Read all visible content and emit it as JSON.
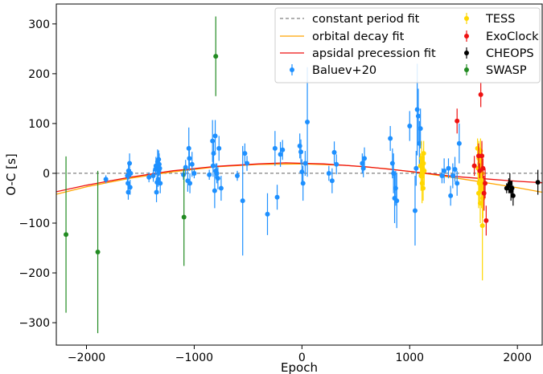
{
  "chart_data": {
    "type": "scatter",
    "xlabel": "Epoch",
    "ylabel": "O-C [s]",
    "xlim": [
      -2280,
      2230
    ],
    "ylim": [
      -345,
      340
    ],
    "xticks": [
      -2000,
      -1000,
      0,
      1000,
      2000
    ],
    "yticks": [
      -300,
      -200,
      -100,
      0,
      100,
      200,
      300
    ],
    "xtick_labels": [
      "−2000",
      "−1000",
      "0",
      "1000",
      "2000"
    ],
    "ytick_labels": [
      "−300",
      "−200",
      "−100",
      "0",
      "100",
      "200",
      "300"
    ],
    "grid": false,
    "legend_position": "top-right",
    "fits": [
      {
        "name": "constant period fit",
        "color": "#808080",
        "style": "dashed",
        "points": [
          [
            -2280,
            0
          ],
          [
            2230,
            0
          ]
        ]
      },
      {
        "name": "orbital decay fit",
        "color": "#ffa500",
        "style": "solid",
        "points": [
          [
            -2280,
            -42
          ],
          [
            -2000,
            -27
          ],
          [
            -1600,
            -10
          ],
          [
            -1200,
            3
          ],
          [
            -800,
            13
          ],
          [
            -400,
            18
          ],
          [
            0,
            19
          ],
          [
            400,
            16
          ],
          [
            800,
            9
          ],
          [
            1200,
            -2
          ],
          [
            1600,
            -15
          ],
          [
            2000,
            -29
          ],
          [
            2230,
            -38
          ]
        ]
      },
      {
        "name": "apsidal precession fit",
        "color": "#ee1111",
        "style": "solid",
        "points": [
          [
            -2280,
            -37
          ],
          [
            -2000,
            -24
          ],
          [
            -1600,
            -8
          ],
          [
            -1200,
            5
          ],
          [
            -800,
            14
          ],
          [
            -400,
            19
          ],
          [
            -150,
            21
          ],
          [
            200,
            19
          ],
          [
            600,
            13
          ],
          [
            1000,
            4
          ],
          [
            1400,
            -6
          ],
          [
            1700,
            -11
          ],
          [
            2000,
            -16
          ],
          [
            2230,
            -19
          ]
        ]
      }
    ],
    "series": [
      {
        "name": "Baluev+20",
        "color": "#1e90ff",
        "points": [
          [
            -1820,
            -12,
            8
          ],
          [
            -1620,
            -5,
            12
          ],
          [
            -1615,
            -20,
            18
          ],
          [
            -1612,
            -38,
            15
          ],
          [
            -1610,
            5,
            15
          ],
          [
            -1605,
            -2,
            10
          ],
          [
            -1600,
            20,
            20
          ],
          [
            -1595,
            -28,
            15
          ],
          [
            -1590,
            0,
            8
          ],
          [
            -1420,
            -8,
            10
          ],
          [
            -1380,
            -5,
            12
          ],
          [
            -1360,
            8,
            10
          ],
          [
            -1355,
            15,
            18
          ],
          [
            -1350,
            -38,
            20
          ],
          [
            -1345,
            -18,
            20
          ],
          [
            -1340,
            23,
            25
          ],
          [
            -1335,
            -12,
            15
          ],
          [
            -1330,
            28,
            18
          ],
          [
            -1328,
            5,
            10
          ],
          [
            -1325,
            18,
            22
          ],
          [
            -1320,
            10,
            12
          ],
          [
            -1315,
            -20,
            20
          ],
          [
            -1100,
            -3,
            10
          ],
          [
            -1080,
            12,
            15
          ],
          [
            -1060,
            -15,
            22
          ],
          [
            -1050,
            50,
            42
          ],
          [
            -1045,
            30,
            25
          ],
          [
            -1040,
            -20,
            20
          ],
          [
            -1020,
            18,
            25
          ],
          [
            -1000,
            0,
            10
          ],
          [
            -860,
            -3,
            10
          ],
          [
            -830,
            65,
            42
          ],
          [
            -825,
            15,
            22
          ],
          [
            -820,
            40,
            25
          ],
          [
            -810,
            -35,
            35
          ],
          [
            -805,
            75,
            32
          ],
          [
            -800,
            5,
            15
          ],
          [
            -790,
            0,
            20
          ],
          [
            -780,
            -10,
            22
          ],
          [
            -770,
            50,
            25
          ],
          [
            -750,
            -30,
            25
          ],
          [
            -600,
            -5,
            10
          ],
          [
            -550,
            -55,
            110
          ],
          [
            -530,
            40,
            20
          ],
          [
            -510,
            20,
            15
          ],
          [
            -320,
            -82,
            42
          ],
          [
            -250,
            50,
            35
          ],
          [
            -230,
            -48,
            25
          ],
          [
            -200,
            38,
            25
          ],
          [
            -180,
            47,
            20
          ],
          [
            -20,
            55,
            25
          ],
          [
            -10,
            43,
            25
          ],
          [
            0,
            3,
            25
          ],
          [
            10,
            -20,
            35
          ],
          [
            30,
            20,
            25
          ],
          [
            50,
            103,
            110
          ],
          [
            250,
            0,
            15
          ],
          [
            280,
            -15,
            25
          ],
          [
            300,
            42,
            22
          ],
          [
            320,
            18,
            20
          ],
          [
            560,
            20,
            20
          ],
          [
            570,
            10,
            18
          ],
          [
            580,
            30,
            22
          ],
          [
            820,
            70,
            25
          ],
          [
            840,
            20,
            30
          ],
          [
            850,
            0,
            40
          ],
          [
            860,
            -50,
            50
          ],
          [
            870,
            -30,
            35
          ],
          [
            880,
            -55,
            55
          ],
          [
            1000,
            95,
            30
          ],
          [
            1050,
            -75,
            70
          ],
          [
            1060,
            10,
            35
          ],
          [
            1070,
            128,
            92
          ],
          [
            1080,
            115,
            55
          ],
          [
            1090,
            60,
            45
          ],
          [
            1100,
            90,
            40
          ],
          [
            1300,
            -5,
            15
          ],
          [
            1320,
            5,
            25
          ],
          [
            1360,
            10,
            20
          ],
          [
            1380,
            -45,
            20
          ],
          [
            1400,
            -5,
            25
          ],
          [
            1420,
            8,
            25
          ],
          [
            1440,
            -20,
            25
          ],
          [
            1460,
            60,
            40
          ]
        ]
      },
      {
        "name": "TESS",
        "color": "#ffd700",
        "points": [
          [
            1100,
            15,
            25
          ],
          [
            1105,
            -5,
            30
          ],
          [
            1110,
            30,
            35
          ],
          [
            1115,
            -20,
            40
          ],
          [
            1118,
            0,
            35
          ],
          [
            1120,
            10,
            30
          ],
          [
            1125,
            -30,
            25
          ],
          [
            1128,
            20,
            30
          ],
          [
            1130,
            40,
            25
          ],
          [
            1135,
            5,
            30
          ],
          [
            1630,
            50,
            20
          ],
          [
            1635,
            10,
            30
          ],
          [
            1640,
            -40,
            30
          ],
          [
            1642,
            30,
            35
          ],
          [
            1645,
            -20,
            40
          ],
          [
            1648,
            0,
            35
          ],
          [
            1650,
            20,
            30
          ],
          [
            1655,
            -60,
            40
          ],
          [
            1658,
            45,
            25
          ],
          [
            1660,
            -10,
            30
          ],
          [
            1665,
            10,
            35
          ],
          [
            1668,
            -30,
            40
          ],
          [
            1670,
            35,
            25
          ],
          [
            1672,
            0,
            30
          ],
          [
            1675,
            -105,
            110
          ],
          [
            1680,
            -50,
            40
          ]
        ]
      },
      {
        "name": "ExoClock",
        "color": "#ee1111",
        "points": [
          [
            1440,
            105,
            25
          ],
          [
            1600,
            15,
            20
          ],
          [
            1640,
            35,
            25
          ],
          [
            1650,
            5,
            15
          ],
          [
            1660,
            158,
            25
          ],
          [
            1670,
            35,
            30
          ],
          [
            1680,
            10,
            20
          ],
          [
            1690,
            -40,
            35
          ],
          [
            1700,
            -20,
            30
          ],
          [
            1710,
            -95,
            30
          ]
        ]
      },
      {
        "name": "CHEOPS",
        "color": "#000000",
        "points": [
          [
            1900,
            -30,
            10
          ],
          [
            1920,
            -25,
            15
          ],
          [
            1930,
            -20,
            20
          ],
          [
            1940,
            -35,
            20
          ],
          [
            1950,
            -30,
            15
          ],
          [
            1960,
            -45,
            20
          ],
          [
            2190,
            -18,
            25
          ]
        ]
      },
      {
        "name": "SWASP",
        "color": "#228b22",
        "points": [
          [
            -2190,
            -123,
            157
          ],
          [
            -1895,
            -158,
            163
          ],
          [
            -1095,
            -88,
            98
          ],
          [
            -800,
            235,
            80
          ]
        ]
      }
    ]
  }
}
